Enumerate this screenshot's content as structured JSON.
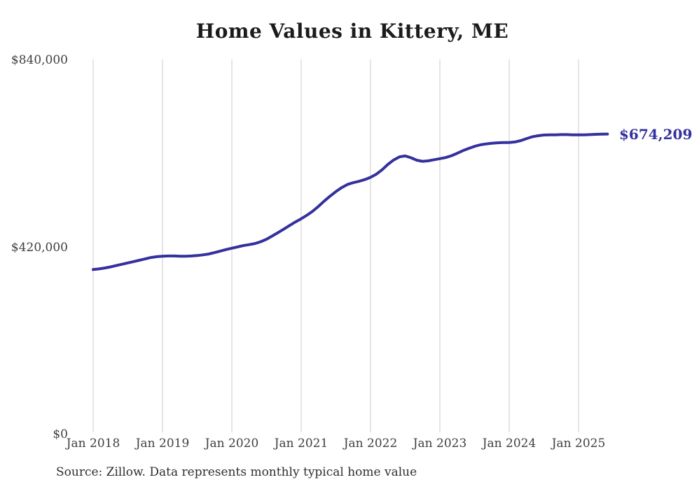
{
  "title": "Home Values in Kittery, ME",
  "source_note": "Source: Zillow. Data represents monthly typical home value",
  "colors": {
    "line": "#34309E",
    "end_label": "#34309E",
    "grid": "#cbcbcb",
    "title_text": "#1b1b1b",
    "axis_text": "#3f3f3f",
    "source_text": "#2e2e2e",
    "background": "#ffffff"
  },
  "chart_data": {
    "type": "line",
    "title": "Home Values in Kittery, ME",
    "xlabel": "",
    "ylabel": "",
    "ylim": [
      0,
      840000
    ],
    "grid": "vertical-only",
    "legend": "none",
    "end_value_label": "$674,209",
    "x_tick_labels": [
      "Jan 2018",
      "Jan 2019",
      "Jan 2020",
      "Jan 2021",
      "Jan 2022",
      "Jan 2023",
      "Jan 2024",
      "Jan 2025"
    ],
    "y_ticks": [
      {
        "label": "$840,000",
        "value": 840000
      },
      {
        "label": "$420,000",
        "value": 420000
      },
      {
        "label": "$0",
        "value": 0
      }
    ],
    "series": [
      {
        "name": "Monthly typical home value",
        "unit": "USD",
        "start_month": "2018-01",
        "end_month": "2025-06",
        "points_per_year": 12,
        "values": [
          370000,
          371500,
          373500,
          376000,
          379000,
          382000,
          385000,
          388000,
          391000,
          394000,
          397000,
          399000,
          400000,
          400500,
          400500,
          400000,
          400000,
          400500,
          401500,
          403000,
          405000,
          408000,
          411500,
          415000,
          418000,
          421000,
          424000,
          426000,
          428500,
          432500,
          438000,
          445500,
          453000,
          461000,
          469000,
          477000,
          484000,
          492000,
          501000,
          512000,
          524000,
          535000,
          545000,
          554000,
          561000,
          565000,
          568000,
          572000,
          577000,
          584000,
          594000,
          606000,
          616000,
          623000,
          625000,
          621000,
          615500,
          613000,
          614000,
          616500,
          619000,
          621500,
          625500,
          631000,
          637000,
          642000,
          646500,
          650000,
          652000,
          653500,
          654500,
          655000,
          655000,
          656500,
          659500,
          664000,
          668000,
          670500,
          672000,
          672500,
          672500,
          673000,
          673000,
          672500,
          672500,
          672500,
          673000,
          673500,
          674000,
          674209
        ]
      }
    ]
  }
}
